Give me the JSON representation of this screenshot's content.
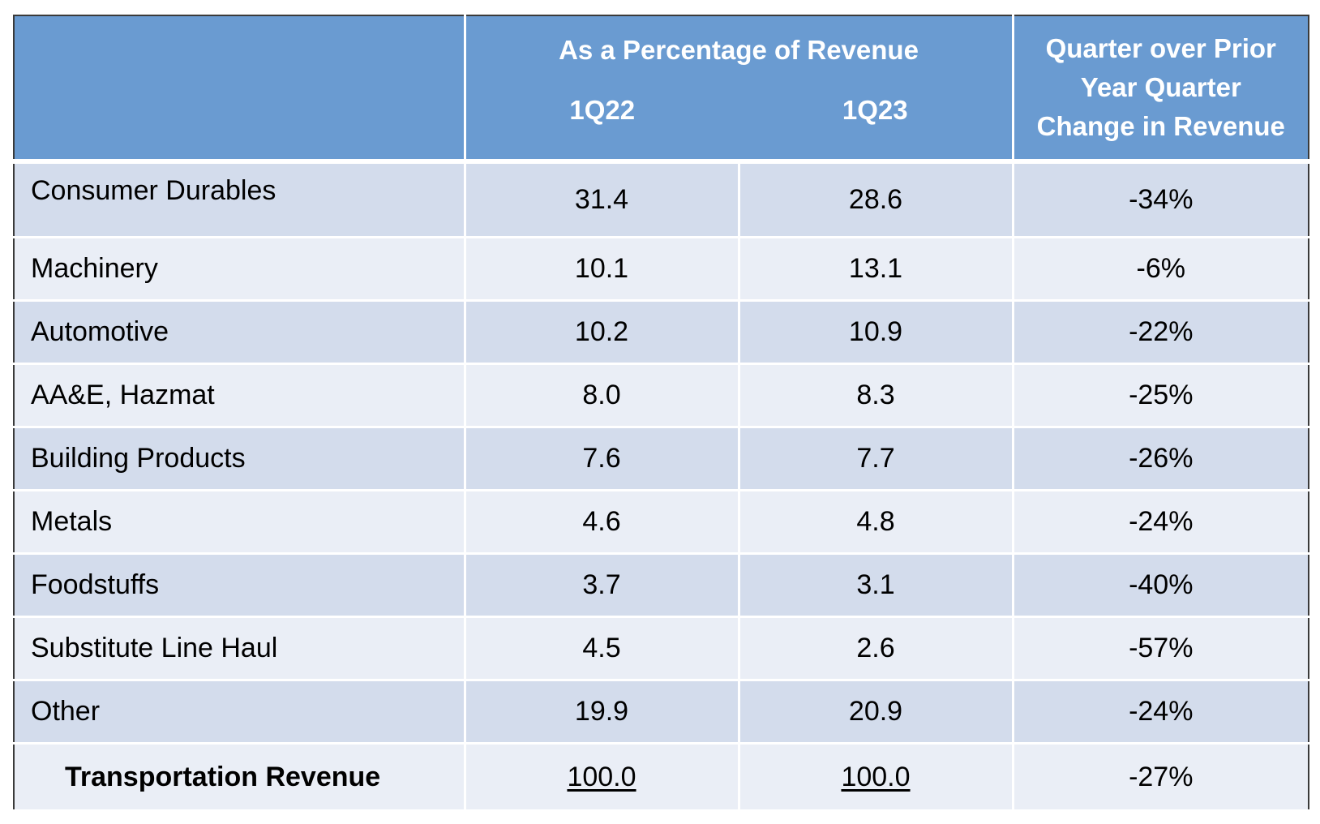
{
  "header": {
    "group_title": "As a Percentage of Revenue",
    "col_1q22": "1Q22",
    "col_1q23": "1Q23",
    "change_title_line1": "Quarter over Prior",
    "change_title_line2": "Year Quarter",
    "change_title_line3": "Change in Revenue"
  },
  "rows": [
    {
      "label": "Consumer Durables",
      "q22": "31.4",
      "q23": "28.6",
      "change": "-34%"
    },
    {
      "label": "Machinery",
      "q22": "10.1",
      "q23": "13.1",
      "change": "-6%"
    },
    {
      "label": "Automotive",
      "q22": "10.2",
      "q23": "10.9",
      "change": "-22%"
    },
    {
      "label": "AA&E, Hazmat",
      "q22": "8.0",
      "q23": "8.3",
      "change": "-25%"
    },
    {
      "label": "Building Products",
      "q22": "7.6",
      "q23": "7.7",
      "change": "-26%"
    },
    {
      "label": "Metals",
      "q22": "4.6",
      "q23": "4.8",
      "change": "-24%"
    },
    {
      "label": "Foodstuffs",
      "q22": "3.7",
      "q23": "3.1",
      "change": "-40%"
    },
    {
      "label": "Substitute Line Haul",
      "q22": "4.5",
      "q23": "2.6",
      "change": "-57%"
    },
    {
      "label": "Other",
      "q22": "19.9",
      "q23": "20.9",
      "change": "-24%"
    }
  ],
  "total": {
    "label": "Transportation Revenue",
    "q22": "100.0",
    "q23": "100.0",
    "change": "-27%"
  },
  "colors": {
    "header_bg": "#6a9bd1",
    "row_dark": "#d3dcec",
    "row_light": "#eaeef6",
    "border": "#3a3a3a"
  }
}
